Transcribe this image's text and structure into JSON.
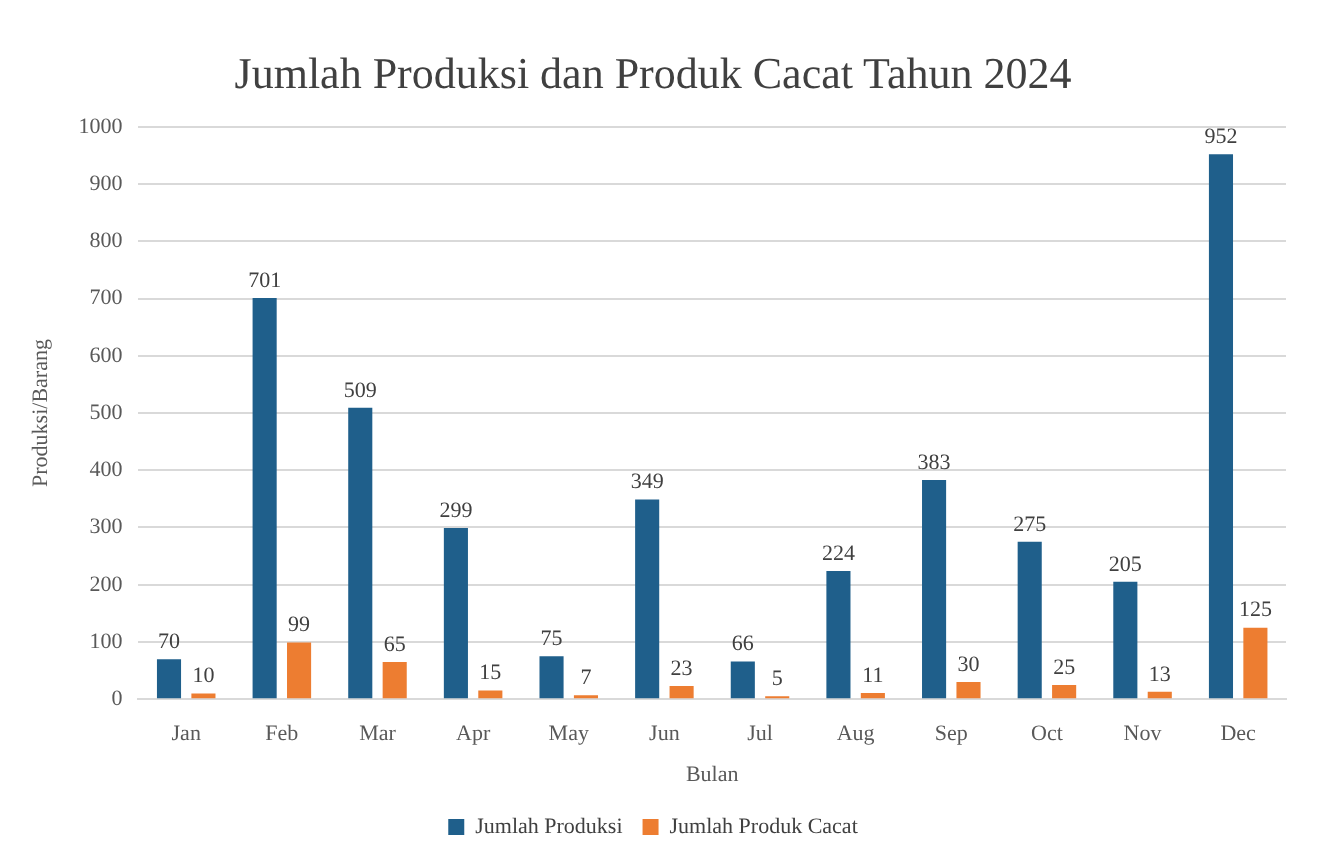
{
  "chart_data": {
    "type": "bar",
    "title": "Jumlah Produksi dan Produk Cacat Tahun 2024",
    "xlabel": "Bulan",
    "ylabel": "Produksi/Barang",
    "categories": [
      "Jan",
      "Feb",
      "Mar",
      "Apr",
      "May",
      "Jun",
      "Jul",
      "Aug",
      "Sep",
      "Oct",
      "Nov",
      "Dec"
    ],
    "series": [
      {
        "name": "Jumlah Produksi",
        "color": "#1f5f8b",
        "values": [
          70,
          701,
          509,
          299,
          75,
          349,
          66,
          224,
          383,
          275,
          205,
          952
        ]
      },
      {
        "name": "Jumlah Produk Cacat",
        "color": "#ed7d31",
        "values": [
          10,
          99,
          65,
          15,
          7,
          23,
          5,
          11,
          30,
          25,
          13,
          125
        ]
      }
    ],
    "ylim": [
      0,
      1000
    ],
    "yticks": [
      0,
      100,
      200,
      300,
      400,
      500,
      600,
      700,
      800,
      900,
      1000
    ],
    "grid": "y",
    "legend": "bottom",
    "data_labels": true
  }
}
